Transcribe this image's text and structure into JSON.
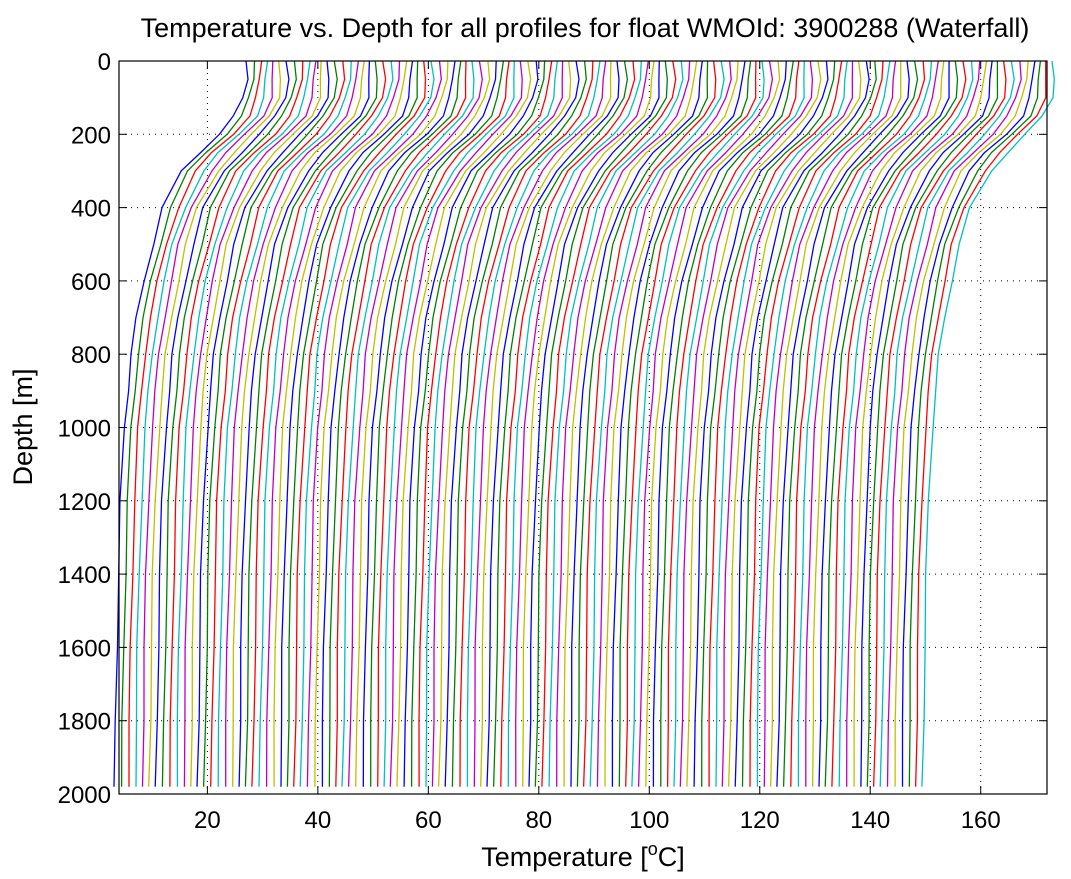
{
  "chart_data": {
    "type": "line",
    "title": "Temperature vs. Depth for all profiles for float WMOId: 3900288 (Waterfall)",
    "xlabel_prefix": "Temperature [",
    "xlabel_sup": "o",
    "xlabel_suffix": "C]",
    "ylabel": "Depth [m]",
    "xlim": [
      4,
      172
    ],
    "ylim": [
      0,
      2000
    ],
    "y_reversed": true,
    "grid": true,
    "legend": "none",
    "xticks": [
      20,
      40,
      60,
      80,
      100,
      120,
      140,
      160
    ],
    "yticks": [
      0,
      200,
      400,
      600,
      800,
      1000,
      1200,
      1400,
      1600,
      1800,
      2000
    ],
    "series_count": 118,
    "offset_per_profile": 1.25,
    "color_cycle": [
      "#0000ff",
      "#008000",
      "#ff0000",
      "#00bfbf",
      "#bf00bf",
      "#bfbf00"
    ],
    "depths": [
      0,
      50,
      100,
      150,
      200,
      250,
      300,
      400,
      500,
      600,
      700,
      800,
      900,
      1000,
      1200,
      1400,
      1600,
      1800,
      1980
    ],
    "base_profile_temperatures": [
      27.0,
      27.0,
      26.5,
      25.0,
      22.0,
      18.5,
      15.5,
      12.0,
      10.0,
      8.5,
      7.2,
      6.2,
      5.6,
      5.0,
      4.3,
      3.9,
      3.6,
      3.4,
      3.2
    ]
  }
}
